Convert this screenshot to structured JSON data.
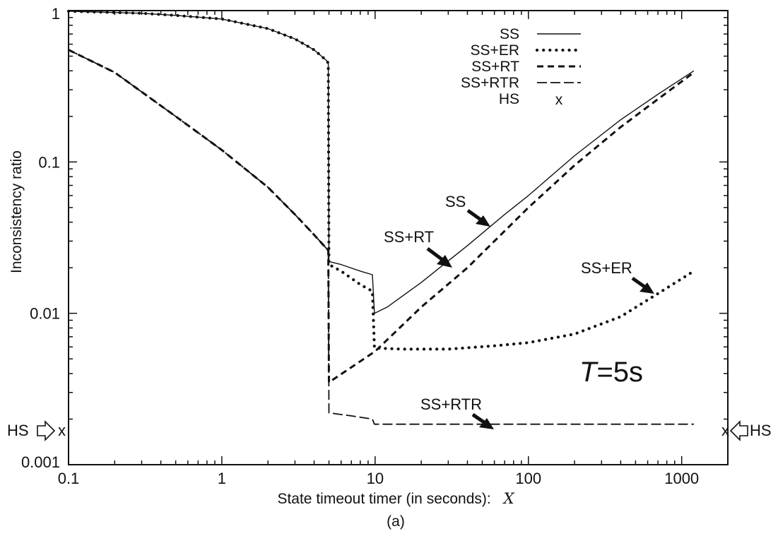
{
  "chart_data": {
    "type": "line",
    "title": "",
    "caption": "(a)",
    "xlabel": "State timeout timer (in seconds):",
    "xlabel_var": "X",
    "ylabel": "Inconsistency ratio",
    "x_scale": "log",
    "y_scale": "log",
    "xlim": [
      0.1,
      2000
    ],
    "ylim": [
      0.001,
      1
    ],
    "x_ticks": [
      {
        "value": 0.1,
        "label": "0.1"
      },
      {
        "value": 1,
        "label": "1"
      },
      {
        "value": 10,
        "label": "10"
      },
      {
        "value": 100,
        "label": "100"
      },
      {
        "value": 1000,
        "label": "1000"
      }
    ],
    "y_ticks": [
      {
        "value": 0.001,
        "label": "0.001"
      },
      {
        "value": 0.01,
        "label": "0.01"
      },
      {
        "value": 0.1,
        "label": "0.1"
      },
      {
        "value": 1,
        "label": "1"
      }
    ],
    "legend_position": "top-right",
    "series": [
      {
        "name": "SS",
        "style": "solid",
        "points": [
          [
            0.1,
            0.99
          ],
          [
            0.3,
            0.96
          ],
          [
            0.5,
            0.93
          ],
          [
            1,
            0.88
          ],
          [
            2,
            0.76
          ],
          [
            3,
            0.65
          ],
          [
            4,
            0.55
          ],
          [
            4.8,
            0.47
          ],
          [
            4.95,
            0.45
          ],
          [
            5.0,
            0.022
          ],
          [
            6,
            0.021
          ],
          [
            8,
            0.019
          ],
          [
            9.6,
            0.018
          ],
          [
            9.9,
            0.01
          ],
          [
            12,
            0.011
          ],
          [
            20,
            0.016
          ],
          [
            40,
            0.028
          ],
          [
            70,
            0.045
          ],
          [
            100,
            0.06
          ],
          [
            200,
            0.11
          ],
          [
            400,
            0.19
          ],
          [
            700,
            0.28
          ],
          [
            1200,
            0.4
          ]
        ]
      },
      {
        "name": "SS+ER",
        "style": "dotted",
        "points": [
          [
            0.1,
            0.99
          ],
          [
            0.3,
            0.96
          ],
          [
            0.5,
            0.93
          ],
          [
            1,
            0.88
          ],
          [
            2,
            0.76
          ],
          [
            3,
            0.65
          ],
          [
            4,
            0.55
          ],
          [
            4.8,
            0.47
          ],
          [
            4.95,
            0.45
          ],
          [
            5.0,
            0.021
          ],
          [
            6,
            0.019
          ],
          [
            8,
            0.0155
          ],
          [
            9.6,
            0.014
          ],
          [
            9.9,
            0.0059
          ],
          [
            15,
            0.0058
          ],
          [
            30,
            0.0058
          ],
          [
            60,
            0.0061
          ],
          [
            100,
            0.0064
          ],
          [
            200,
            0.0073
          ],
          [
            400,
            0.0095
          ],
          [
            700,
            0.0135
          ],
          [
            1200,
            0.019
          ]
        ]
      },
      {
        "name": "SS+RT",
        "style": "dashed",
        "points": [
          [
            0.1,
            0.55
          ],
          [
            0.2,
            0.39
          ],
          [
            0.5,
            0.2
          ],
          [
            1,
            0.12
          ],
          [
            2,
            0.068
          ],
          [
            3,
            0.045
          ],
          [
            4,
            0.033
          ],
          [
            4.95,
            0.026
          ],
          [
            5.0,
            0.0035
          ],
          [
            7,
            0.0044
          ],
          [
            10,
            0.0056
          ],
          [
            20,
            0.011
          ],
          [
            40,
            0.02
          ],
          [
            70,
            0.035
          ],
          [
            100,
            0.05
          ],
          [
            200,
            0.095
          ],
          [
            400,
            0.17
          ],
          [
            700,
            0.26
          ],
          [
            1200,
            0.39
          ]
        ]
      },
      {
        "name": "SS+RTR",
        "style": "longdash",
        "points": [
          [
            0.1,
            0.55
          ],
          [
            0.2,
            0.39
          ],
          [
            0.5,
            0.2
          ],
          [
            1,
            0.12
          ],
          [
            2,
            0.068
          ],
          [
            3,
            0.045
          ],
          [
            4,
            0.033
          ],
          [
            4.95,
            0.026
          ],
          [
            5.0,
            0.0022
          ],
          [
            7,
            0.0021
          ],
          [
            9.6,
            0.002
          ],
          [
            9.9,
            0.00185
          ],
          [
            20,
            0.00185
          ],
          [
            100,
            0.00185
          ],
          [
            1200,
            0.00185
          ]
        ]
      },
      {
        "name": "HS",
        "style": "marker",
        "marker": "x",
        "value": 0.00185
      }
    ],
    "annotations": [
      {
        "text": "SS",
        "target": "SS"
      },
      {
        "text": "SS+RT",
        "target": "SS+RT"
      },
      {
        "text": "SS+ER",
        "target": "SS+ER"
      },
      {
        "text": "SS+RTR",
        "target": "SS+RTR"
      },
      {
        "text": "HS",
        "side": "left",
        "marker": "x"
      },
      {
        "text": "HS",
        "side": "right",
        "marker": "x"
      }
    ],
    "param_label": {
      "var": "T",
      "text": "=5s"
    }
  }
}
